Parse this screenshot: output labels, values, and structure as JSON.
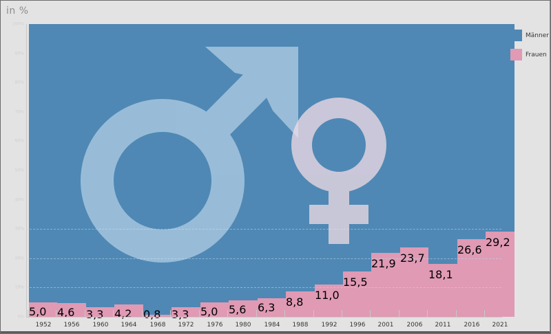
{
  "chart_data": {
    "type": "bar",
    "stacked": true,
    "unit_label": "in %",
    "categories": [
      "1952",
      "1956",
      "1960",
      "1964",
      "1968",
      "1972",
      "1976",
      "1980",
      "1984",
      "1988",
      "1992",
      "1996",
      "2001",
      "2006",
      "2011",
      "2016",
      "2021"
    ],
    "series": [
      {
        "name": "Männer",
        "color": "#4f88b4",
        "values": [
          95.0,
          95.4,
          96.7,
          95.8,
          99.2,
          96.7,
          95.0,
          94.4,
          93.7,
          91.2,
          89.0,
          84.5,
          78.1,
          76.3,
          81.9,
          73.4,
          70.8
        ]
      },
      {
        "name": "Frauen",
        "color": "#e09ab4",
        "values": [
          5.0,
          4.6,
          3.3,
          4.2,
          0.8,
          3.3,
          5.0,
          5.6,
          6.3,
          8.8,
          11.0,
          15.5,
          21.9,
          23.7,
          18.1,
          26.6,
          29.2
        ]
      }
    ],
    "data_labels": [
      "5,0",
      "4,6",
      "3,3",
      "4,2",
      "0,8",
      "3,3",
      "5,0",
      "5,6",
      "6,3",
      "8,8",
      "11,0",
      "15,5",
      "21,9",
      "23,7",
      "18,1",
      "26,6",
      "29,2"
    ],
    "title": "",
    "xlabel": "",
    "ylabel": "in %",
    "y_ticks": [
      "0%",
      "10%",
      "20%",
      "30%",
      "40%",
      "50%",
      "60%",
      "70%",
      "80%",
      "90%",
      "100%"
    ],
    "ylim": [
      0,
      100
    ],
    "grid": "dashed horizontal at 10%, 20%, 30%",
    "legend_position": "right",
    "decorations": [
      "male symbol (light blue, translucent)",
      "female symbol (light pink, translucent)"
    ]
  },
  "legend": {
    "items": [
      {
        "label": "Männer",
        "color": "#4f88b4"
      },
      {
        "label": "Frauen",
        "color": "#e09ab4"
      }
    ]
  }
}
